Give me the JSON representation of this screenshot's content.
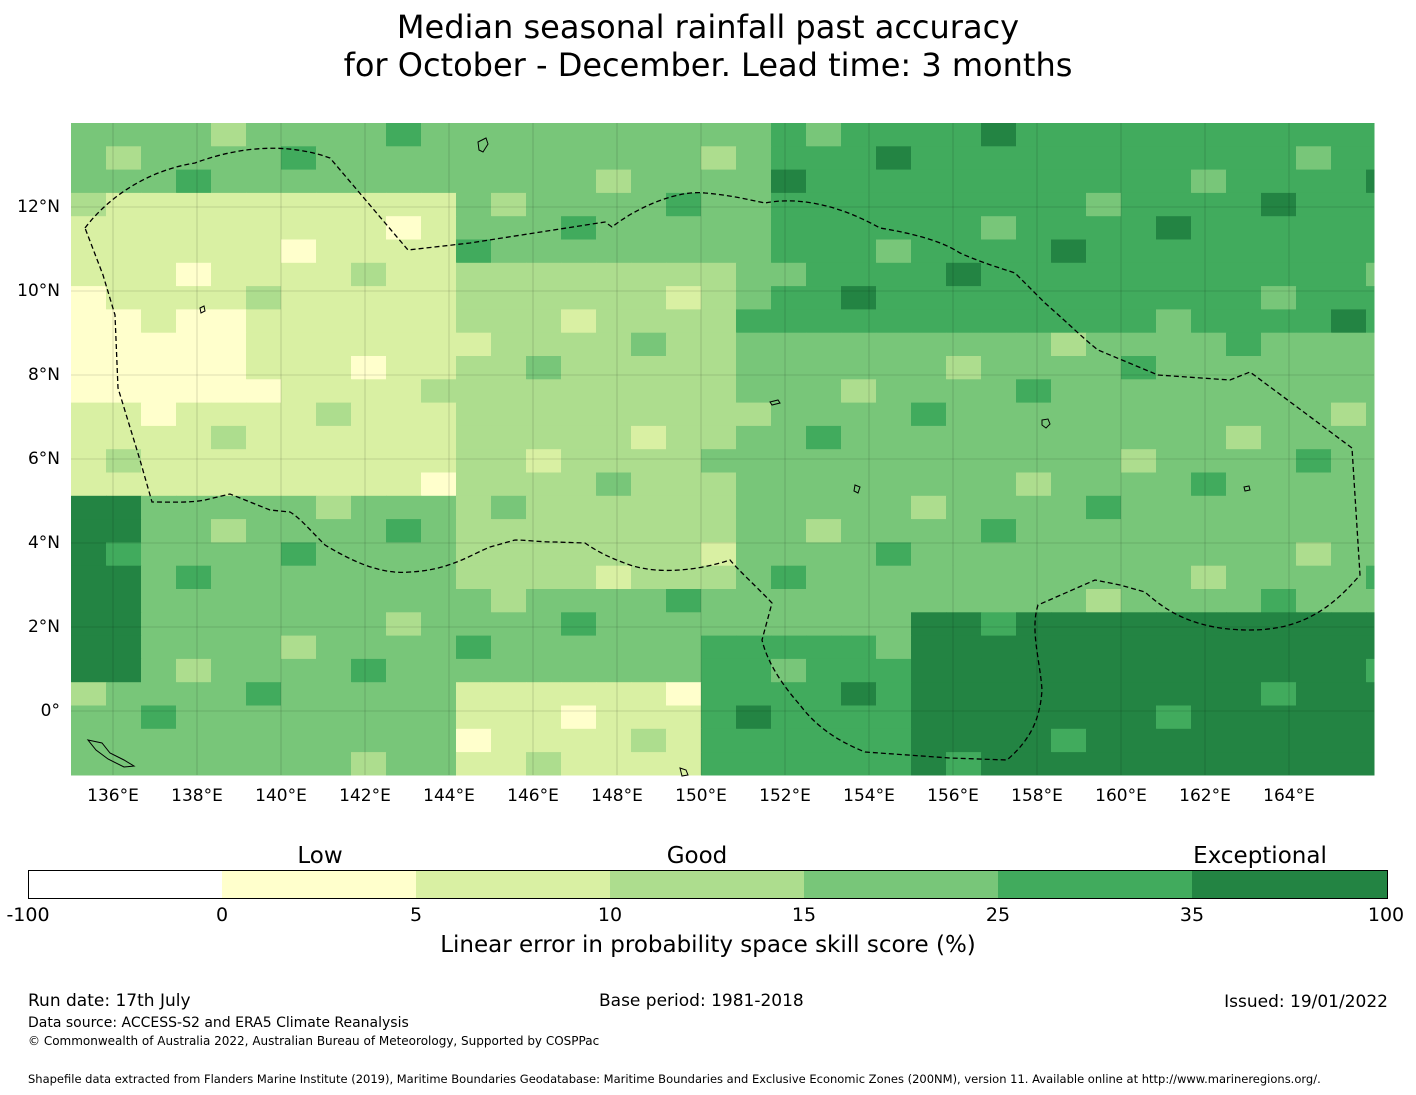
{
  "title": {
    "line1": "Median seasonal rainfall past accuracy",
    "line2": "for October - December. Lead time: 3 months"
  },
  "map": {
    "lat_labels": [
      "12°N",
      "10°N",
      "8°N",
      "6°N",
      "4°N",
      "2°N",
      "0°"
    ],
    "lon_labels": [
      "136°E",
      "138°E",
      "140°E",
      "142°E",
      "144°E",
      "146°E",
      "148°E",
      "150°E",
      "152°E",
      "154°E",
      "156°E",
      "158°E",
      "160°E",
      "162°E",
      "164°E"
    ],
    "lon_range": [
      135,
      166
    ],
    "lat_range": [
      -1.5,
      14
    ],
    "grid_resolution_deg": 0.83,
    "boundary": "dashed"
  },
  "legend": {
    "categories": [
      {
        "label": "Low"
      },
      {
        "label": "Good"
      },
      {
        "label": "Exceptional"
      }
    ],
    "ticks": [
      "-100",
      "0",
      "5",
      "10",
      "15",
      "25",
      "35",
      "100"
    ],
    "colors": [
      "#ffffff",
      "#ffffcc",
      "#d9f0a3",
      "#addd8e",
      "#78c679",
      "#41ab5d",
      "#238443"
    ],
    "axis_label": "Linear error in probability space skill score (%)"
  },
  "footer": {
    "run_date": "Run date: 17th July",
    "base_period": "Base period: 1981-2018",
    "issued": "Issued: 19/01/2022",
    "data_source": "Data source: ACCESS-S2 and ERA5 Climate Reanalysis",
    "copyright": "© Commonwealth of Australia 2022, Australian Bureau of Meteorology, Supported by COSPPac",
    "shapefile": "Shapefile data extracted from Flanders Marine Institute (2019), Maritime Boundaries Geodatabase: Maritime Boundaries and Exclusive Economic Zones (200NM), version 11. Available online at http://www.marineregions.org/."
  }
}
